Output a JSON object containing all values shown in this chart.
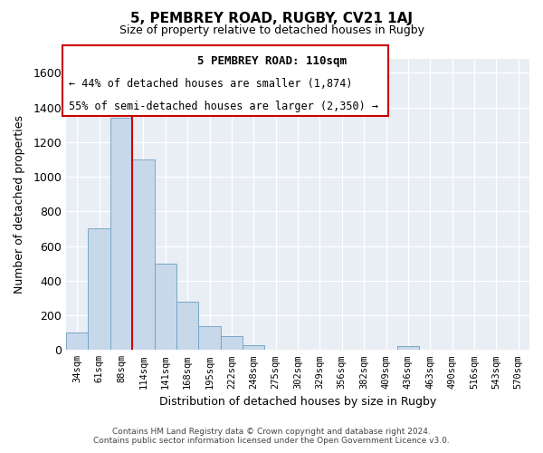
{
  "title": "5, PEMBREY ROAD, RUGBY, CV21 1AJ",
  "subtitle": "Size of property relative to detached houses in Rugby",
  "xlabel": "Distribution of detached houses by size in Rugby",
  "ylabel": "Number of detached properties",
  "bar_labels": [
    "34sqm",
    "61sqm",
    "88sqm",
    "114sqm",
    "141sqm",
    "168sqm",
    "195sqm",
    "222sqm",
    "248sqm",
    "275sqm",
    "302sqm",
    "329sqm",
    "356sqm",
    "382sqm",
    "409sqm",
    "436sqm",
    "463sqm",
    "490sqm",
    "516sqm",
    "543sqm",
    "570sqm"
  ],
  "bar_values": [
    100,
    700,
    1340,
    1100,
    500,
    280,
    140,
    80,
    30,
    0,
    0,
    0,
    0,
    0,
    0,
    20,
    0,
    0,
    0,
    0,
    0
  ],
  "bar_color": "#c8d8eb",
  "bar_edge_color": "#6aa0c0",
  "vline_x_index": 3,
  "vline_color": "#cc0000",
  "ylim": [
    0,
    1680
  ],
  "yticks": [
    0,
    200,
    400,
    600,
    800,
    1000,
    1200,
    1400,
    1600
  ],
  "annotation_title": "5 PEMBREY ROAD: 110sqm",
  "annotation_line1": "← 44% of detached houses are smaller (1,874)",
  "annotation_line2": "55% of semi-detached houses are larger (2,350) →",
  "box_edge_color": "#cc0000",
  "footer1": "Contains HM Land Registry data © Crown copyright and database right 2024.",
  "footer2": "Contains public sector information licensed under the Open Government Licence v3.0.",
  "bg_color": "#e8eef4"
}
